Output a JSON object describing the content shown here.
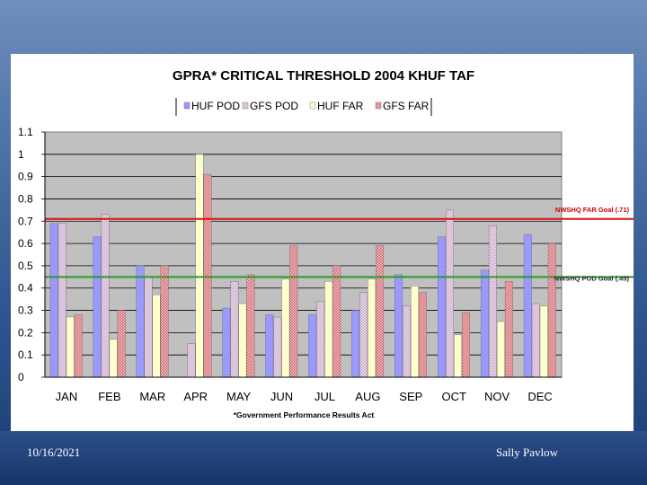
{
  "footer": {
    "date": "10/16/2021",
    "author": "Sally Pavlow"
  },
  "colors": {
    "plot_bg": "#c0c0c0",
    "huf_pod": "#9999ff",
    "gfs_pod": "#c4a0c4",
    "huf_far": "#ffffcc",
    "gfs_far": "#d6606a",
    "far_goal_line": "#e01010",
    "pod_goal_line": "#2a9a2a"
  },
  "chart_data": {
    "type": "bar",
    "title": "GPRA* CRITICAL THRESHOLD 2004 KHUF TAF",
    "footnote": "*Government Performance Results Act",
    "categories": [
      "JAN",
      "FEB",
      "MAR",
      "APR",
      "MAY",
      "JUN",
      "JUL",
      "AUG",
      "SEP",
      "OCT",
      "NOV",
      "DEC"
    ],
    "series": [
      {
        "name": "HUF POD",
        "values": [
          0.69,
          0.63,
          0.5,
          0,
          0.31,
          0.28,
          0.28,
          0.3,
          0.46,
          0.63,
          0.48,
          0.64
        ]
      },
      {
        "name": "GFS POD",
        "values": [
          0.69,
          0.73,
          0.45,
          0.15,
          0.43,
          0.27,
          0.34,
          0.38,
          0.32,
          0.75,
          0.68,
          0.33
        ]
      },
      {
        "name": "HUF FAR",
        "values": [
          0.27,
          0.17,
          0.37,
          1.0,
          0.33,
          0.44,
          0.43,
          0.44,
          0.41,
          0.19,
          0.25,
          0.32
        ]
      },
      {
        "name": "GFS FAR",
        "values": [
          0.28,
          0.3,
          0.5,
          0.91,
          0.46,
          0.59,
          0.5,
          0.59,
          0.38,
          0.29,
          0.43,
          0.6
        ]
      }
    ],
    "ylim": [
      0,
      1.1
    ],
    "yticks": [
      "0",
      "0.1",
      "0.2",
      "0.3",
      "0.4",
      "0.5",
      "0.6",
      "0.7",
      "0.8",
      "0.9",
      "1",
      "1.1"
    ],
    "reference_lines": [
      {
        "label": "NWSHQ FAR Goal (.71)",
        "value": 0.71
      },
      {
        "label": "NWSHQ POD Goal (.45)",
        "value": 0.45
      }
    ],
    "grid": true,
    "legend_position": "top"
  }
}
